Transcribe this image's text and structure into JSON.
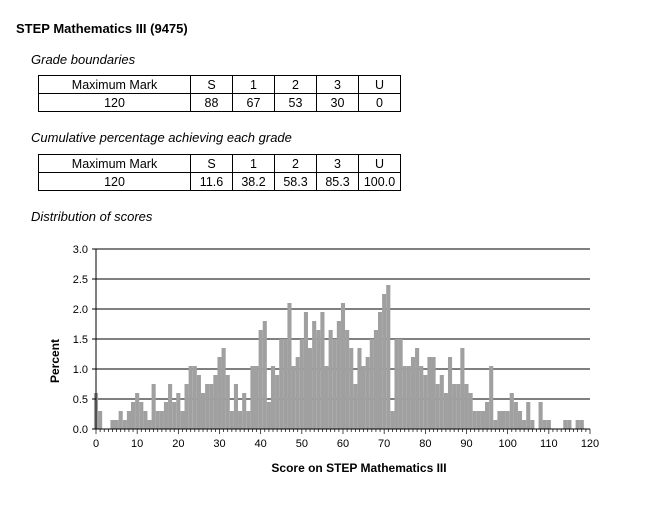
{
  "title": "STEP Mathematics III (9475)",
  "grade_boundaries": {
    "label": "Grade boundaries",
    "headers": [
      "Maximum Mark",
      "S",
      "1",
      "2",
      "3",
      "U"
    ],
    "values": [
      "120",
      "88",
      "67",
      "53",
      "30",
      "0"
    ]
  },
  "cumulative": {
    "label": "Cumulative percentage achieving each grade",
    "headers": [
      "Maximum Mark",
      "S",
      "1",
      "2",
      "3",
      "U"
    ],
    "values": [
      "120",
      "11.6",
      "38.2",
      "58.3",
      "85.3",
      "100.0"
    ]
  },
  "distribution_label": "Distribution of scores",
  "chart_data": {
    "type": "bar",
    "xlabel": "Score on STEP Mathematics III",
    "ylabel": "Percent",
    "xlim": [
      0,
      120
    ],
    "ylim": [
      0,
      3.0
    ],
    "x_ticks": [
      "0",
      "10",
      "20",
      "30",
      "40",
      "50",
      "60",
      "70",
      "80",
      "90",
      "100",
      "110",
      "120"
    ],
    "y_ticks": [
      "0.0",
      "0.5",
      "1.0",
      "1.5",
      "2.0",
      "2.5",
      "3.0"
    ],
    "grid": "horizontal",
    "bar_color": "#a0a0a0",
    "x": [
      0,
      1,
      2,
      3,
      4,
      5,
      6,
      7,
      8,
      9,
      10,
      11,
      12,
      13,
      14,
      15,
      16,
      17,
      18,
      19,
      20,
      21,
      22,
      23,
      24,
      25,
      26,
      27,
      28,
      29,
      30,
      31,
      32,
      33,
      34,
      35,
      36,
      37,
      38,
      39,
      40,
      41,
      42,
      43,
      44,
      45,
      46,
      47,
      48,
      49,
      50,
      51,
      52,
      53,
      54,
      55,
      56,
      57,
      58,
      59,
      60,
      61,
      62,
      63,
      64,
      65,
      66,
      67,
      68,
      69,
      70,
      71,
      72,
      73,
      74,
      75,
      76,
      77,
      78,
      79,
      80,
      81,
      82,
      83,
      84,
      85,
      86,
      87,
      88,
      89,
      90,
      91,
      92,
      93,
      94,
      95,
      96,
      97,
      98,
      99,
      100,
      101,
      102,
      103,
      104,
      105,
      106,
      107,
      108,
      109,
      110,
      111,
      112,
      113,
      114,
      115,
      116,
      117,
      118,
      119,
      120
    ],
    "values": [
      0.6,
      0.3,
      0,
      0,
      0.15,
      0.15,
      0.3,
      0.15,
      0.3,
      0.45,
      0.6,
      0.45,
      0.3,
      0.15,
      0.75,
      0.3,
      0.3,
      0.45,
      0.75,
      0.45,
      0.6,
      0.3,
      0.75,
      1.05,
      1.05,
      0.9,
      0.6,
      0.75,
      0.75,
      0.9,
      1.2,
      1.35,
      0.9,
      0.3,
      0.75,
      0.3,
      0.6,
      0.3,
      1.05,
      1.05,
      1.65,
      1.8,
      0.45,
      1.05,
      0.9,
      1.5,
      1.5,
      2.1,
      1.05,
      1.2,
      1.5,
      1.95,
      1.35,
      1.8,
      1.65,
      1.95,
      1.05,
      1.65,
      1.5,
      1.8,
      2.1,
      1.65,
      1.35,
      0.75,
      1.35,
      1.05,
      1.2,
      1.5,
      1.65,
      1.95,
      2.25,
      2.4,
      0.3,
      1.5,
      1.5,
      1.05,
      1.05,
      1.2,
      1.35,
      1.05,
      0.9,
      1.2,
      1.2,
      0.75,
      0.9,
      0.6,
      1.2,
      0.75,
      0.75,
      1.35,
      0.75,
      0.6,
      0.3,
      0.3,
      0.3,
      0.45,
      1.05,
      0.15,
      0.3,
      0.3,
      0.3,
      0.6,
      0.45,
      0.3,
      0.15,
      0.45,
      0.15,
      0,
      0.45,
      0.15,
      0.15,
      0,
      0,
      0,
      0.15,
      0.15,
      0,
      0.15,
      0.15,
      0,
      0
    ]
  }
}
